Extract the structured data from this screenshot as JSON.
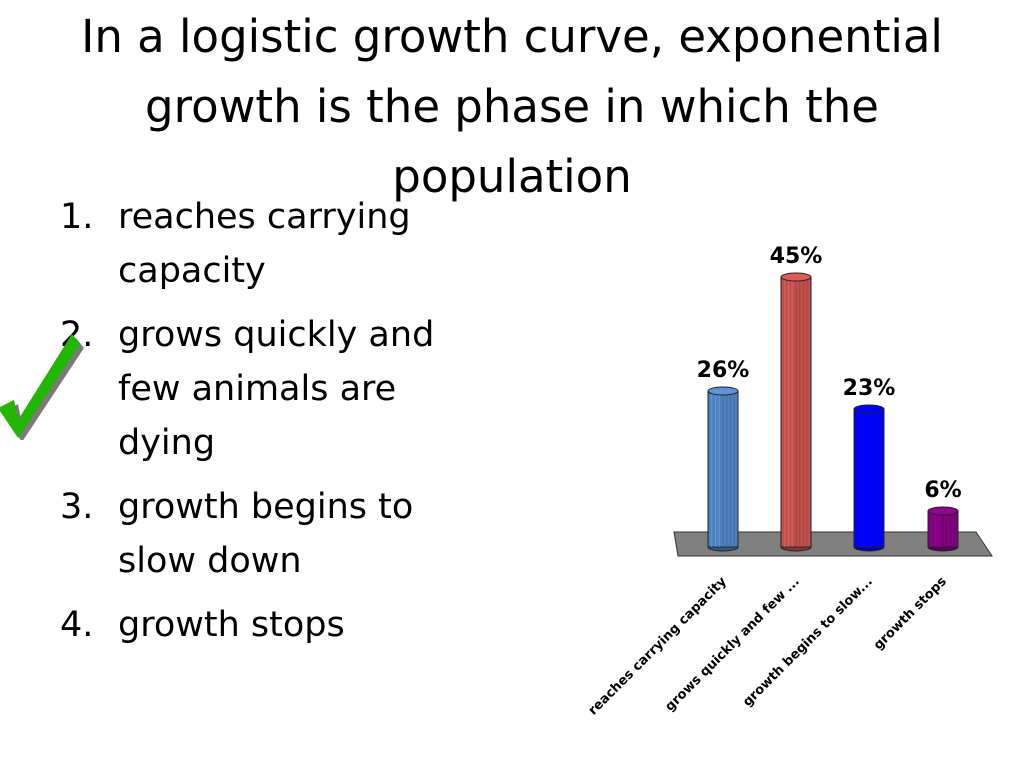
{
  "slide": {
    "title": "In a logistic growth curve, exponential growth is the phase in which the population"
  },
  "options": [
    {
      "number": "1.",
      "text": "reaches carrying capacity"
    },
    {
      "number": "2.",
      "text": "grows quickly and few animals are dying",
      "correct": true
    },
    {
      "number": "3.",
      "text": "growth begins to slow down"
    },
    {
      "number": "4.",
      "text": "growth stops"
    }
  ],
  "icons": {
    "correct_marker": "checkmark-icon"
  },
  "colors": {
    "bar_1": "#4f81bd",
    "bar_2": "#c0504d",
    "bar_3": "#0000ff",
    "bar_4": "#800080",
    "floor": "#808080",
    "checkmark": "#22b600"
  },
  "chart_data": {
    "type": "bar",
    "categories": [
      "reaches carrying capacity",
      "grows quickly and few ...",
      "growth begins to slow...",
      "growth stops"
    ],
    "values": [
      26,
      45,
      23,
      6
    ],
    "value_labels": [
      "26%",
      "45%",
      "23%",
      "6%"
    ],
    "colors": [
      "#4f81bd",
      "#c0504d",
      "#0000ff",
      "#800080"
    ],
    "ylim": [
      0,
      45
    ],
    "grid": false,
    "legend": "none",
    "style": "3d-cylinder"
  }
}
